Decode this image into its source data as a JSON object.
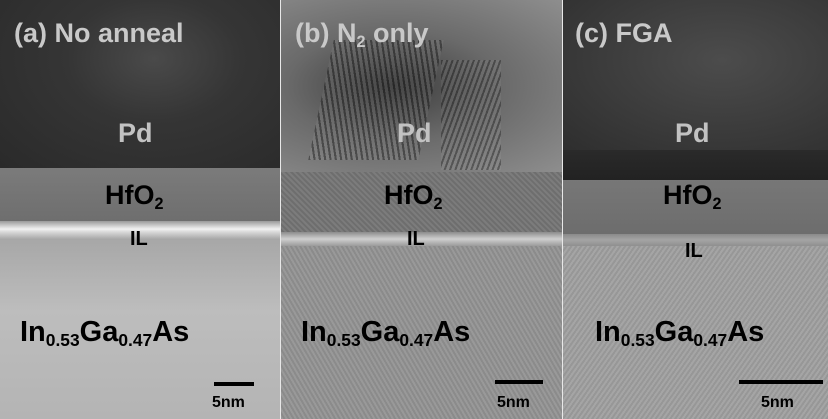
{
  "panels": [
    {
      "title": {
        "prefix": "(a) No anneal"
      },
      "metal": "Pd",
      "oxide": {
        "base": "HfO",
        "sub": "2"
      },
      "interlayer": "IL",
      "substrate": {
        "p1": "In",
        "s1": "0.53",
        "p2": "Ga",
        "s2": "0.47",
        "p3": "As"
      },
      "scale_label": "5nm"
    },
    {
      "title": {
        "prefix": "(b) N",
        "sub": "2",
        "suffix": " only"
      },
      "metal": "Pd",
      "oxide": {
        "base": "HfO",
        "sub": "2"
      },
      "interlayer": "IL",
      "substrate": {
        "p1": "In",
        "s1": "0.53",
        "p2": "Ga",
        "s2": "0.47",
        "p3": "As"
      },
      "scale_label": "5nm"
    },
    {
      "title": {
        "prefix": "(c) FGA"
      },
      "metal": "Pd",
      "oxide": {
        "base": "HfO",
        "sub": "2"
      },
      "interlayer": "IL",
      "substrate": {
        "p1": "In",
        "s1": "0.53",
        "p2": "Ga",
        "s2": "0.47",
        "p3": "As"
      },
      "scale_label": "5nm"
    }
  ]
}
